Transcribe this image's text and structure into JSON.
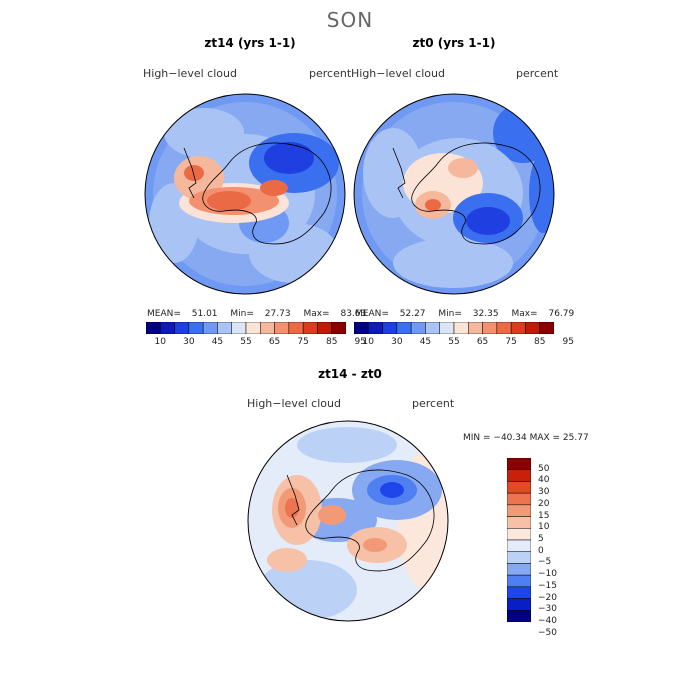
{
  "season": "SON",
  "panels": [
    {
      "title": "zt14 (yrs 1-1)",
      "variable": "High−level  cloud",
      "units": "percent",
      "stats": {
        "mean_label": "MEAN=",
        "mean": "51.01",
        "min_label": "Min=",
        "min": "27.73",
        "max_label": "Max=",
        "max": "83.63"
      }
    },
    {
      "title": "zt0 (yrs 1-1)",
      "variable": "High−level  cloud",
      "units": "percent",
      "stats": {
        "mean_label": "MEAN=",
        "mean": "52.27",
        "min_label": "Min=",
        "min": "32.35",
        "max_label": "Max=",
        "max": "76.79"
      }
    }
  ],
  "diff": {
    "title": "zt14 - zt0",
    "variable": "High−level  cloud",
    "units": "percent",
    "minmax": "MIN = −40.34  MAX =   25.77"
  },
  "colorbar_main": {
    "colors": [
      "#000080",
      "#0f1ab8",
      "#1f3fe0",
      "#3a6ff0",
      "#6f99f2",
      "#a9c4f4",
      "#dce6f8",
      "#fbe3d8",
      "#f6b89c",
      "#f29070",
      "#ea6a46",
      "#dd3c1c",
      "#c01a08",
      "#8a0000"
    ],
    "labels": [
      "10",
      "30",
      "45",
      "55",
      "65",
      "75",
      "85",
      "95"
    ]
  },
  "colorbar_diff": {
    "colors": [
      "#000080",
      "#0a1ec8",
      "#1f46ea",
      "#4f7ff0",
      "#86a9f2",
      "#bcd1f6",
      "#e4ecf9",
      "#fbe7dc",
      "#f7c1a8",
      "#f29a78",
      "#ec7550",
      "#e34a24",
      "#c8200a",
      "#8a0000"
    ],
    "labels": [
      "50",
      "40",
      "30",
      "20",
      "15",
      "10",
      "5",
      "0",
      "−5",
      "−10",
      "−15",
      "−20",
      "−30",
      "−40",
      "−50"
    ]
  }
}
